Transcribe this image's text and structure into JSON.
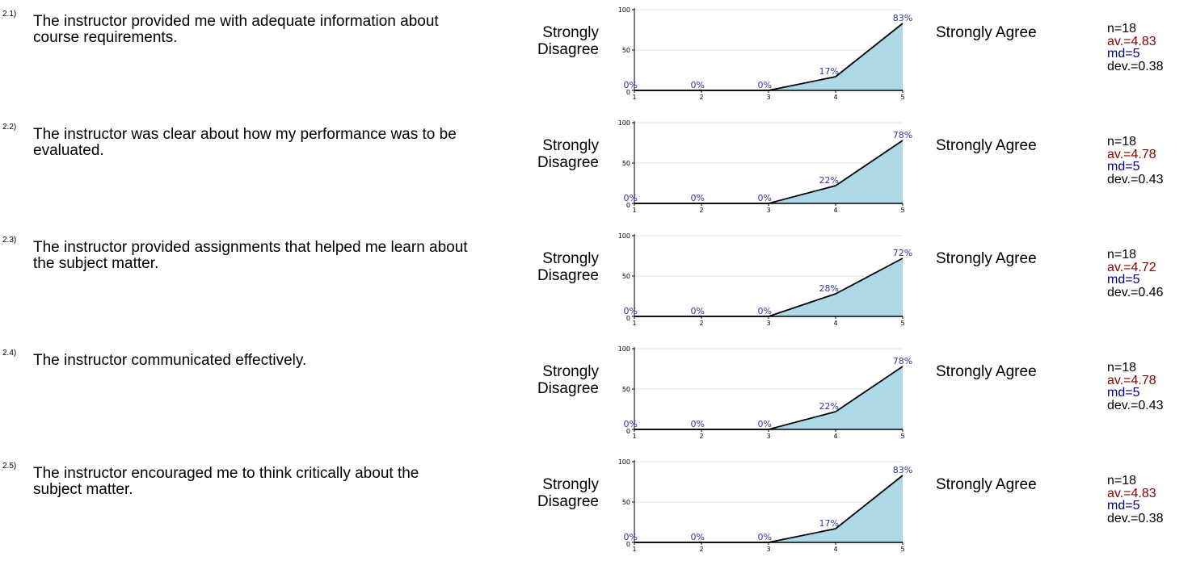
{
  "scale": {
    "left_label": "Strongly\nDisagree",
    "right_label": "Strongly Agree"
  },
  "questions": [
    {
      "number": "2.1)",
      "text": "The instructor provided me with adequate information about course requirements.",
      "n": "n=18",
      "av": "av.=4.83",
      "md": "md=5",
      "dev": "dev.=0.38"
    },
    {
      "number": "2.2)",
      "text": "The instructor was clear about how my performance was to be evaluated.",
      "n": "n=18",
      "av": "av.=4.78",
      "md": "md=5",
      "dev": "dev.=0.43"
    },
    {
      "number": "2.3)",
      "text": "The instructor provided assignments that helped me learn about the subject matter.",
      "n": "n=18",
      "av": "av.=4.72",
      "md": "md=5",
      "dev": "dev.=0.46"
    },
    {
      "number": "2.4)",
      "text": "The instructor communicated effectively.",
      "n": "n=18",
      "av": "av.=4.78",
      "md": "md=5",
      "dev": "dev.=0.43"
    },
    {
      "number": "2.5)",
      "text": "The instructor encouraged me to think critically about the subject matter.",
      "n": "n=18",
      "av": "av.=4.83",
      "md": "md=5",
      "dev": "dev.=0.38"
    }
  ],
  "colors": {
    "fill": "#add8e6",
    "line": "#000000",
    "pct_label": "#3333aa",
    "av": "#8b0000",
    "md": "#000080"
  },
  "chart_data": [
    {
      "type": "area",
      "x": [
        1,
        2,
        3,
        4,
        5
      ],
      "values": [
        0,
        0,
        0,
        17,
        83
      ],
      "labels": [
        "0%",
        "0%",
        "0%",
        "17%",
        "83%"
      ],
      "ylim": [
        0,
        100
      ],
      "yticks": [
        0,
        50,
        100
      ],
      "grid": true
    },
    {
      "type": "area",
      "x": [
        1,
        2,
        3,
        4,
        5
      ],
      "values": [
        0,
        0,
        0,
        22,
        78
      ],
      "labels": [
        "0%",
        "0%",
        "0%",
        "22%",
        "78%"
      ],
      "ylim": [
        0,
        100
      ],
      "yticks": [
        0,
        50,
        100
      ],
      "grid": true
    },
    {
      "type": "area",
      "x": [
        1,
        2,
        3,
        4,
        5
      ],
      "values": [
        0,
        0,
        0,
        28,
        72
      ],
      "labels": [
        "0%",
        "0%",
        "0%",
        "28%",
        "72%"
      ],
      "ylim": [
        0,
        100
      ],
      "yticks": [
        0,
        50,
        100
      ],
      "grid": true
    },
    {
      "type": "area",
      "x": [
        1,
        2,
        3,
        4,
        5
      ],
      "values": [
        0,
        0,
        0,
        22,
        78
      ],
      "labels": [
        "0%",
        "0%",
        "0%",
        "22%",
        "78%"
      ],
      "ylim": [
        0,
        100
      ],
      "yticks": [
        0,
        50,
        100
      ],
      "grid": true
    },
    {
      "type": "area",
      "x": [
        1,
        2,
        3,
        4,
        5
      ],
      "values": [
        0,
        0,
        0,
        17,
        83
      ],
      "labels": [
        "0%",
        "0%",
        "0%",
        "17%",
        "83%"
      ],
      "ylim": [
        0,
        100
      ],
      "yticks": [
        0,
        50,
        100
      ],
      "grid": true
    }
  ]
}
